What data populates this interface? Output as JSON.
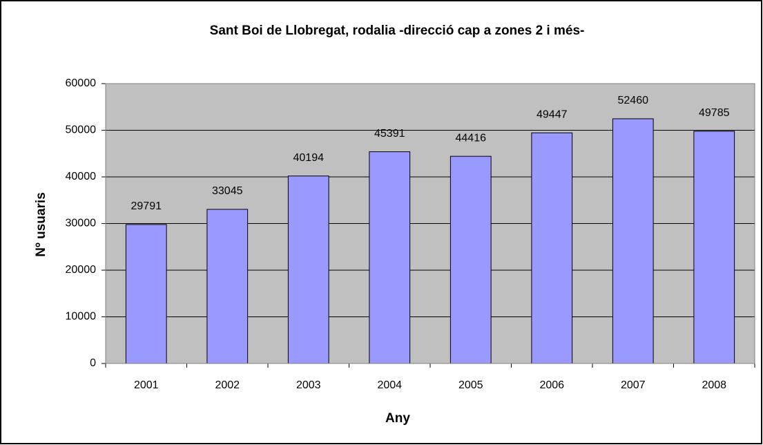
{
  "chart_data": {
    "type": "bar",
    "title": "Sant Boi de Llobregat, rodalia -direcció cap a zones 2 i més-",
    "x_label": "Any",
    "y_label": "Nº usuaris",
    "categories": [
      "2001",
      "2002",
      "2003",
      "2004",
      "2005",
      "2006",
      "2007",
      "2008"
    ],
    "values": [
      29791,
      33045,
      40194,
      45391,
      44416,
      49447,
      52460,
      49785
    ],
    "color": "#9999ff",
    "plot_background": "#c0c0c0",
    "ylim": [
      0,
      60000
    ],
    "yticks": [
      0,
      10000,
      20000,
      30000,
      40000,
      50000,
      60000
    ],
    "grid": true,
    "data_labels": true
  }
}
